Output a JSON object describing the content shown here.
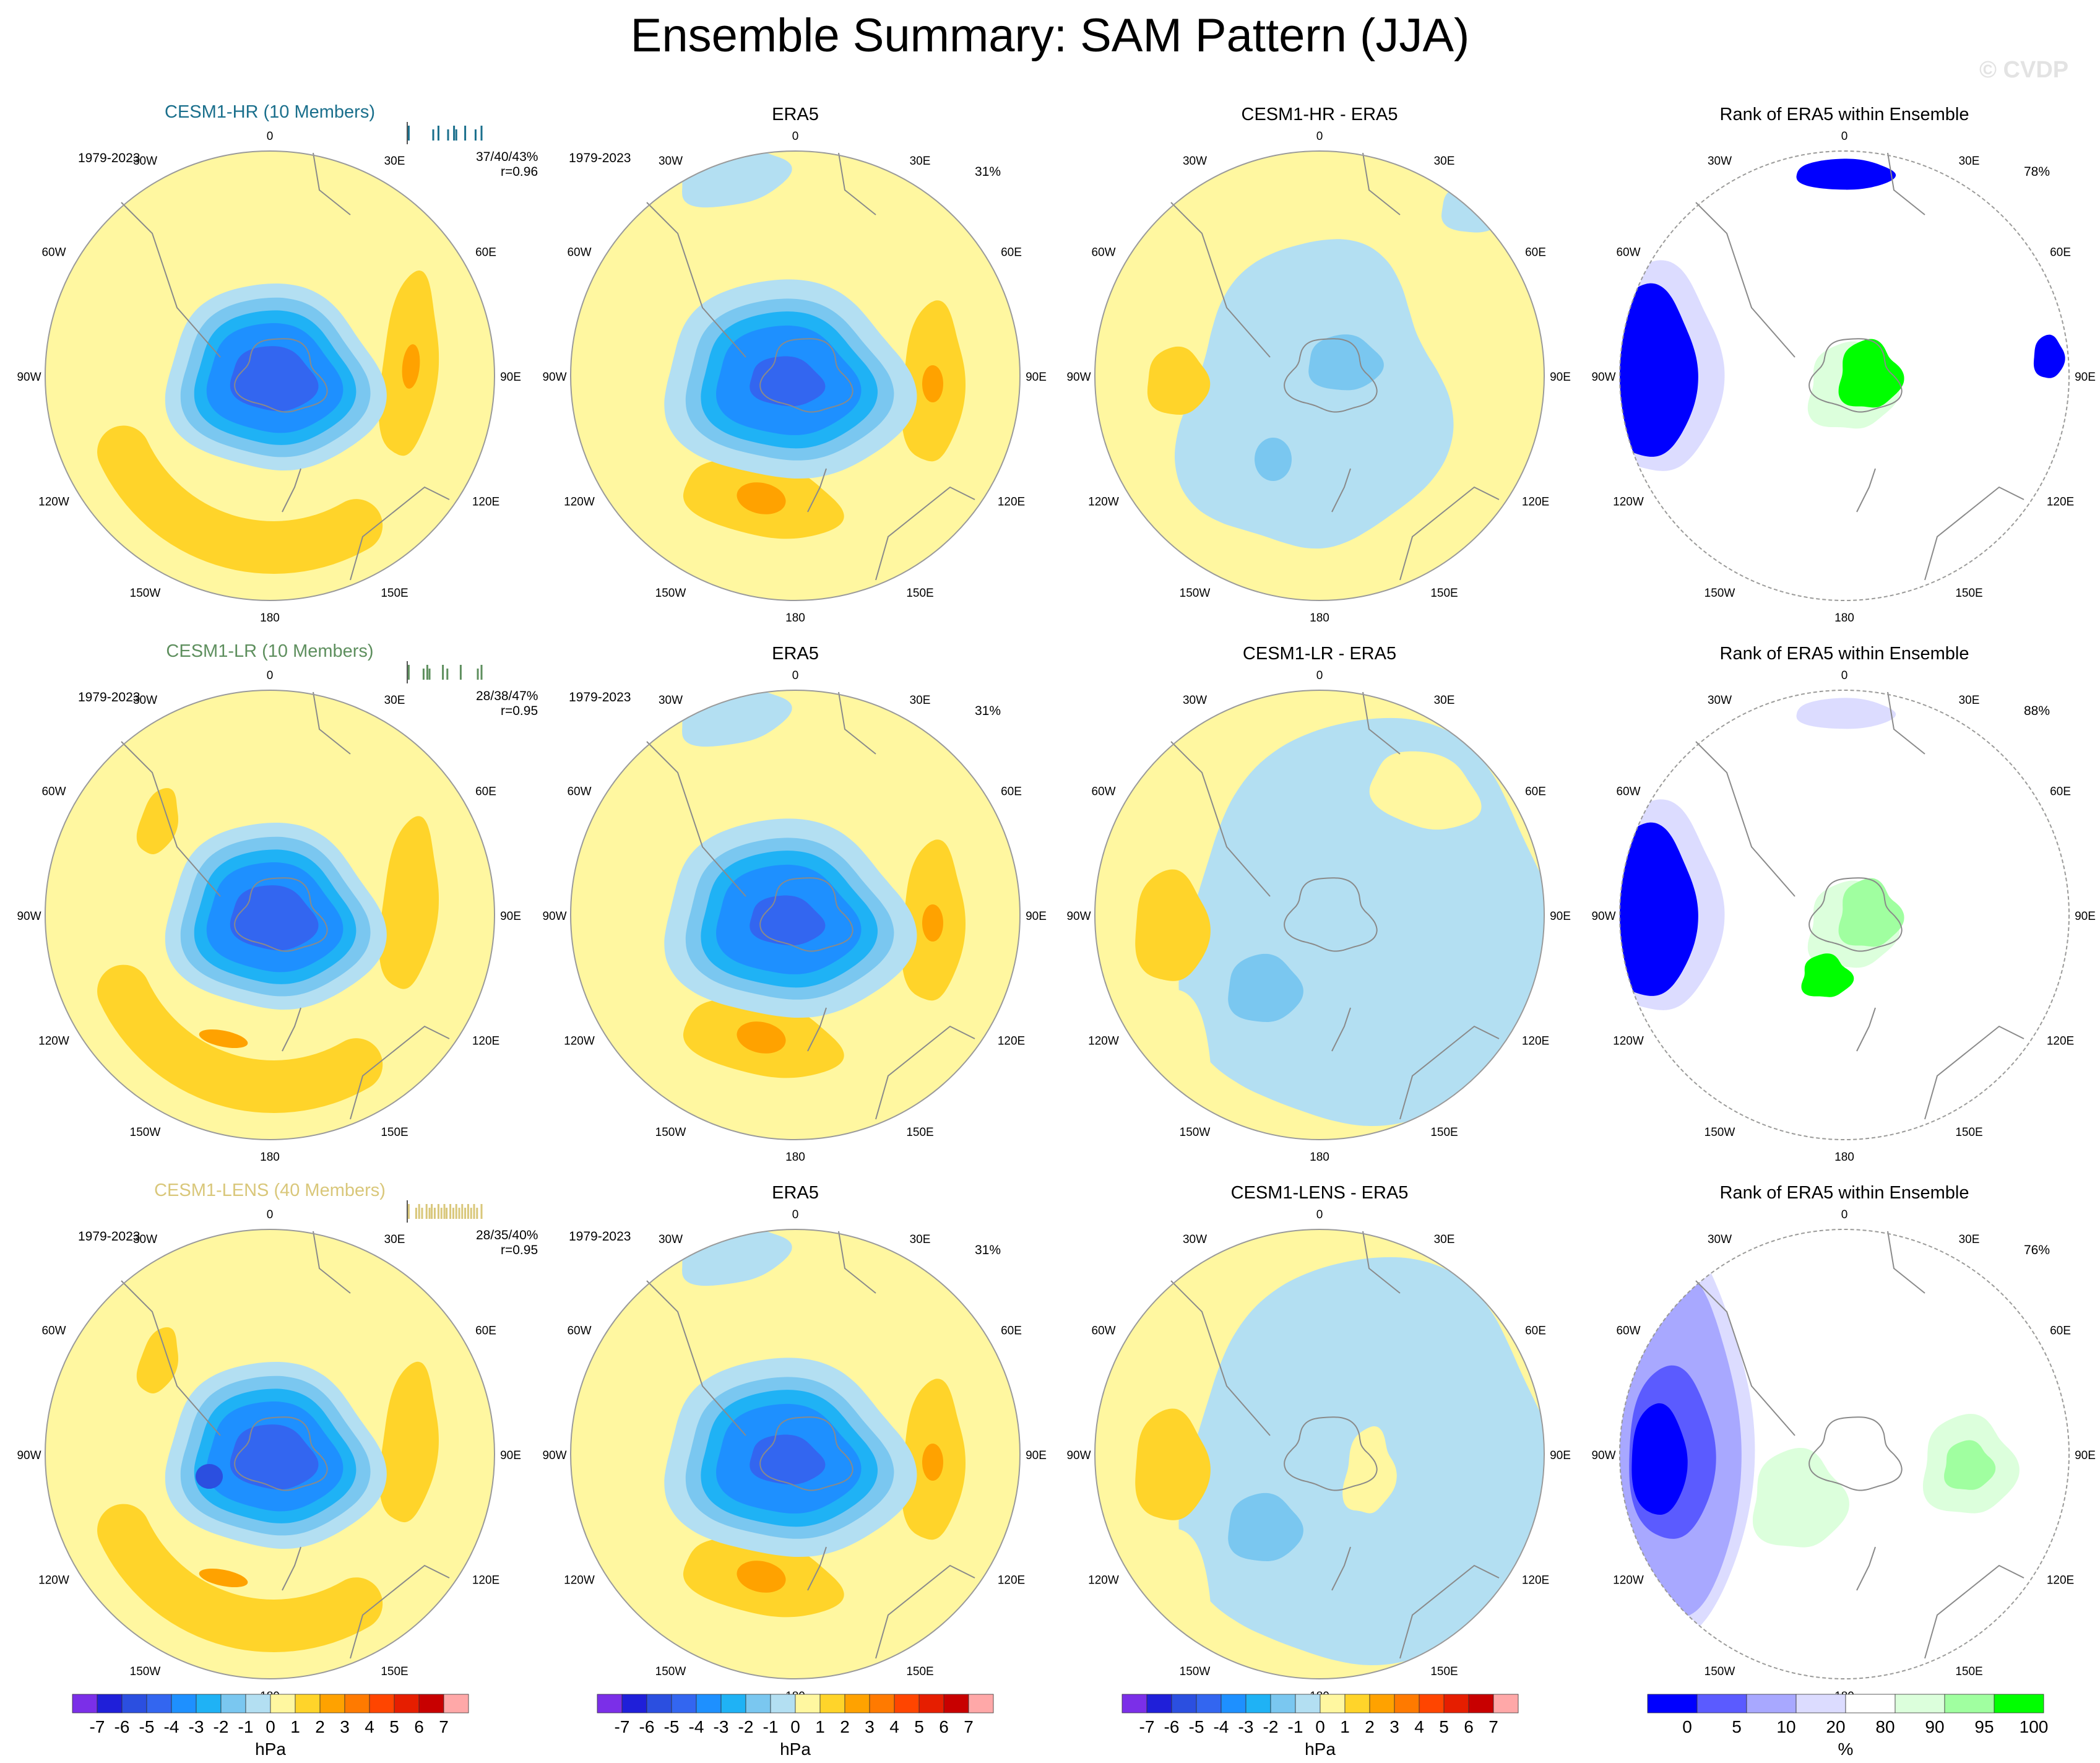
{
  "figure": {
    "title": "Ensemble Summary: SAM Pattern (JJA)",
    "watermark": "© CVDP"
  },
  "chart_data": {
    "type": "polar-contour-map-panels",
    "projection": "South Polar Stereographic",
    "longitude_labels": [
      "0",
      "30E",
      "60E",
      "90E",
      "120E",
      "150E",
      "180",
      "150W",
      "120W",
      "90W",
      "60W",
      "30W"
    ],
    "colors": {
      "neg7": "#7b2fe8",
      "neg6": "#1f1fd9",
      "neg5": "#2b4fe0",
      "neg4": "#3366f0",
      "neg3": "#1e90ff",
      "neg2": "#1fb2f5",
      "neg1": "#7ac7f0",
      "neg0": "#b3dff2",
      "pos0": "#fff7a0",
      "pos1": "#ffd42a",
      "pos2": "#ffa200",
      "pos3": "#ff7a00",
      "pos4": "#ff4500",
      "pos5": "#e61e00",
      "pos6": "#c80000",
      "pos7": "#ffa8a8",
      "rank0": "#0000ff",
      "rank5": "#5b5bff",
      "rank10": "#a8a8ff",
      "rank20": "#dcdcff",
      "rank80": "#ffffff",
      "rank90": "#dcffdc",
      "rank95": "#a0ffa0",
      "rank100": "#00ff00",
      "hr_title": "#1a6f8c",
      "lr_title": "#5e8f5e",
      "lens_title": "#d9c77a"
    },
    "rows": [
      {
        "model_title": "CESM1-HR (10 Members)",
        "period": "1979-2023",
        "stats_pct": "37/40/43%",
        "stats_r": "r=0.96",
        "ticks": [
          0.02,
          0.35,
          0.42,
          0.55,
          0.63,
          0.66,
          0.78,
          0.92,
          1.0
        ],
        "era_title": "ERA5",
        "era_period": "1979-2023",
        "era_pct": "31%",
        "diff_title": "CESM1-HR - ERA5",
        "rank_title": "Rank of ERA5 within Ensemble",
        "rank_pct": "78%"
      },
      {
        "model_title": "CESM1-LR (10 Members)",
        "period": "1979-2023",
        "stats_pct": "28/38/47%",
        "stats_r": "r=0.95",
        "ticks": [
          0.02,
          0.22,
          0.27,
          0.3,
          0.48,
          0.54,
          0.72,
          0.95,
          1.0
        ],
        "era_title": "ERA5",
        "era_period": "1979-2023",
        "era_pct": "31%",
        "diff_title": "CESM1-LR - ERA5",
        "rank_title": "Rank of ERA5 within Ensemble",
        "rank_pct": "88%"
      },
      {
        "model_title": "CESM1-LENS (40 Members)",
        "period": "1979-2023",
        "stats_pct": "28/35/40%",
        "stats_r": "r=0.95",
        "ticks": [
          0.02,
          0.12,
          0.16,
          0.2,
          0.26,
          0.3,
          0.33,
          0.37,
          0.42,
          0.46,
          0.5,
          0.53,
          0.58,
          0.62,
          0.66,
          0.7,
          0.74,
          0.78,
          0.82,
          0.86,
          0.9,
          0.94,
          1.0
        ],
        "era_title": "ERA5",
        "era_period": "1979-2023",
        "era_pct": "31%",
        "diff_title": "CESM1-LENS - ERA5",
        "rank_title": "Rank of ERA5 within Ensemble",
        "rank_pct": "76%"
      }
    ],
    "colorbar_hpa": {
      "labels": [
        "-7",
        "-6",
        "-5",
        "-4",
        "-3",
        "-2",
        "-1",
        "0",
        "1",
        "2",
        "3",
        "4",
        "5",
        "6",
        "7"
      ],
      "unit": "hPa"
    },
    "colorbar_rank": {
      "labels": [
        "0",
        "5",
        "10",
        "20",
        "80",
        "90",
        "95",
        "100"
      ],
      "unit": "%"
    }
  }
}
